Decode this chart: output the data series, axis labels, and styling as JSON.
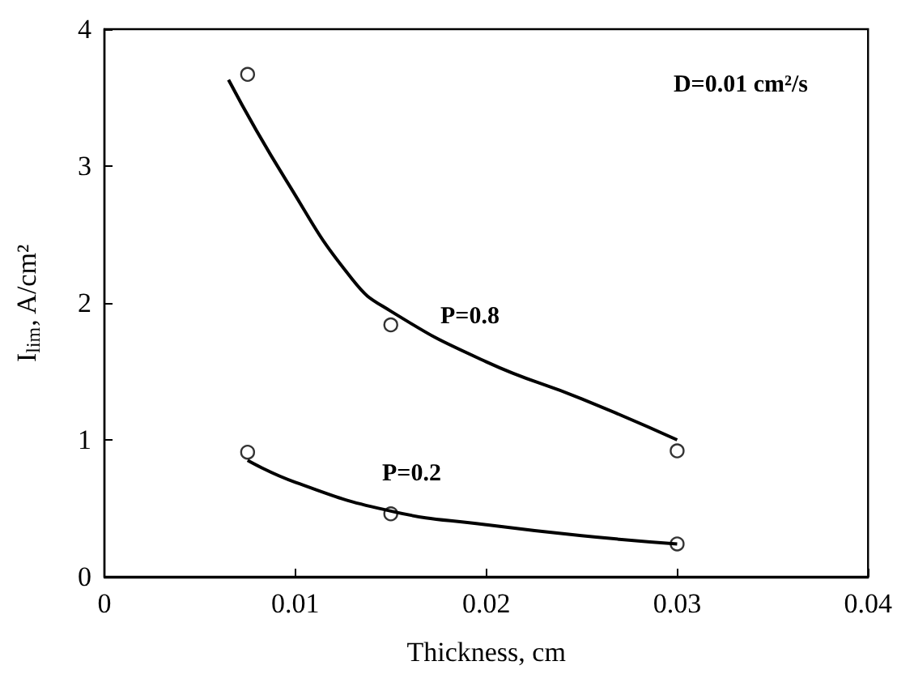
{
  "chart_data": {
    "type": "scatter",
    "xlabel": "Thickness, cm",
    "ylabel": "I$_{lim}$, A/cm²",
    "xlim": [
      0,
      0.04
    ],
    "xticks": [
      0,
      0.01,
      0.02,
      0.03,
      0.04
    ],
    "ylim": [
      0,
      4
    ],
    "yticks": [
      0,
      1,
      2,
      3,
      4
    ],
    "grid": false,
    "marker": "circle",
    "annotations": [
      "D=0.01 cm²/s",
      "P=0.8",
      "P=0.2"
    ],
    "series": [
      {
        "color": "#000000",
        "x": [
          0.0075,
          0.015,
          0.03
        ],
        "values": [
          3.67,
          1.84,
          0.92
        ]
      },
      {
        "color": "#000000",
        "x": [
          0.0075,
          0.015,
          0.03
        ],
        "values": [
          0.91,
          0.46,
          0.24
        ]
      },
      {
        "type": "line",
        "color": "#000000",
        "marker": "none",
        "line_style": "solid",
        "x": [
          0.0065,
          0.0095,
          0.013,
          0.015,
          0.02,
          0.025,
          0.03
        ],
        "values": [
          3.63,
          2.9,
          2.17,
          1.94,
          1.57,
          1.3,
          1.0
        ]
      },
      {
        "type": "line",
        "color": "#000000",
        "marker": "none",
        "line_style": "solid",
        "x": [
          0.0075,
          0.01,
          0.015,
          0.02,
          0.025,
          0.03
        ],
        "values": [
          0.85,
          0.69,
          0.48,
          0.38,
          0.3,
          0.24
        ]
      }
    ]
  }
}
